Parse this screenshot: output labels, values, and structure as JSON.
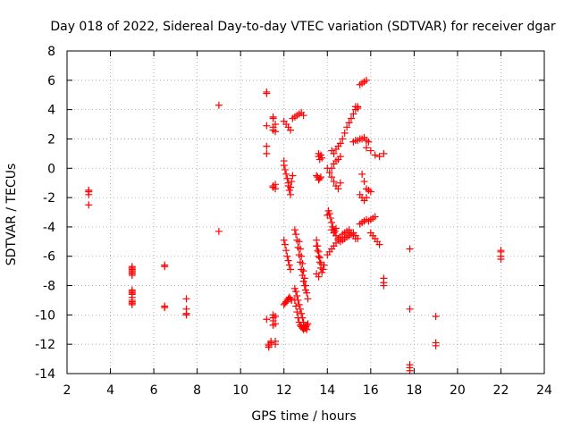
{
  "chart_data": {
    "type": "scatter",
    "title": "Day 018 of 2022, Sidereal Day-to-day VTEC variation (SDTVAR) for receiver dgar",
    "xlabel": "GPS time / hours",
    "ylabel": "SDTVAR / TECUs",
    "xlim": [
      2,
      24
    ],
    "ylim": [
      -14,
      8
    ],
    "xticks": [
      2,
      4,
      6,
      8,
      10,
      12,
      14,
      16,
      18,
      20,
      22,
      24
    ],
    "yticks": [
      -14,
      -12,
      -10,
      -8,
      -6,
      -4,
      -2,
      0,
      2,
      4,
      6,
      8
    ],
    "grid": true,
    "marker": "+",
    "marker_color": "#ff0000",
    "series": [
      {
        "name": "SDTVAR",
        "x": [
          3.0,
          3.0,
          3.0,
          3.0,
          5.0,
          5.0,
          5.0,
          5.0,
          5.0,
          5.0,
          5.0,
          5.0,
          5.0,
          5.0,
          5.0,
          5.0,
          5.0,
          5.0,
          5.0,
          5.0,
          6.5,
          6.5,
          6.5,
          6.5,
          7.5,
          7.5,
          7.5,
          7.5,
          9.0,
          9.0,
          11.2,
          11.2,
          11.2,
          11.2,
          11.2,
          11.2,
          11.3,
          11.3,
          11.3,
          11.4,
          11.4,
          11.5,
          11.5,
          11.5,
          11.5,
          11.5,
          11.5,
          11.5,
          11.5,
          11.5,
          11.5,
          11.6,
          11.6,
          11.6,
          11.6,
          11.6,
          11.6,
          11.6,
          11.6,
          12.0,
          12.0,
          12.05,
          12.1,
          12.15,
          12.2,
          12.2,
          12.25,
          12.3,
          12.3,
          12.35,
          12.4,
          12.0,
          12.05,
          12.1,
          12.15,
          12.2,
          12.25,
          12.3,
          12.0,
          12.05,
          12.1,
          12.15,
          12.2,
          12.25,
          12.3,
          12.35,
          12.0,
          12.1,
          12.2,
          12.3,
          12.4,
          12.5,
          12.6,
          12.7,
          12.8,
          12.9,
          12.5,
          12.55,
          12.6,
          12.65,
          12.7,
          12.75,
          12.8,
          12.85,
          12.9,
          12.95,
          13.0,
          12.5,
          12.55,
          12.6,
          12.65,
          12.7,
          12.75,
          12.8,
          12.85,
          12.9,
          12.95,
          13.0,
          13.05,
          12.5,
          12.55,
          12.6,
          12.65,
          12.7,
          12.75,
          12.8,
          12.85,
          12.9,
          12.95,
          13.0,
          13.05,
          13.1,
          12.7,
          12.75,
          12.8,
          12.85,
          12.9,
          12.95,
          13.0,
          13.05,
          13.1,
          13.6,
          13.6,
          13.65,
          13.7,
          13.75,
          13.5,
          13.55,
          13.6,
          13.65,
          13.7,
          13.5,
          13.55,
          13.6,
          13.65,
          13.7,
          13.75,
          13.8,
          13.85,
          13.5,
          13.55,
          13.6,
          13.65,
          13.7,
          13.5,
          13.6,
          14.0,
          14.05,
          14.1,
          14.15,
          14.2,
          14.25,
          14.3,
          14.35,
          14.4,
          14.0,
          14.1,
          14.2,
          14.3,
          14.4,
          14.5,
          14.6,
          14.2,
          14.3,
          14.4,
          14.5,
          14.6,
          14.7,
          14.8,
          14.9,
          15.0,
          15.1,
          15.2,
          15.3,
          15.4,
          14.2,
          14.3,
          14.4,
          14.5,
          14.6,
          14.7,
          14.8,
          14.9,
          15.0,
          15.1,
          15.2,
          15.3,
          15.4,
          14.2,
          14.3,
          14.4,
          14.5,
          14.6,
          14.0,
          14.1,
          14.2,
          14.3,
          14.4,
          14.5,
          14.6,
          14.7,
          14.8,
          14.9,
          15.0,
          15.1,
          15.2,
          15.3,
          15.3,
          15.4,
          15.5,
          15.6,
          15.7,
          15.8,
          15.2,
          15.3,
          15.4,
          15.5,
          15.6,
          15.7,
          15.8,
          15.9,
          15.6,
          15.7,
          15.8,
          15.9,
          16.0,
          15.5,
          15.6,
          15.7,
          15.8,
          15.9,
          16.0,
          16.1,
          16.2,
          15.5,
          15.6,
          15.7,
          15.8,
          15.8,
          16.0,
          16.2,
          16.4,
          16.6,
          16.0,
          16.1,
          16.2,
          16.3,
          16.4,
          16.6,
          16.6,
          16.6,
          17.8,
          17.8,
          17.8,
          17.8,
          17.8,
          19.0,
          19.0,
          19.0,
          22.0,
          22.0,
          22.0,
          22.0
        ],
        "y": [
          -1.6,
          -1.8,
          -1.5,
          -2.5,
          -6.9,
          -7.1,
          -7.0,
          -7.3,
          -6.8,
          -8.4,
          -8.6,
          -8.5,
          -8.8,
          -9.0,
          -9.2,
          -9.3,
          -9.1,
          -8.3,
          -7.2,
          -6.7,
          -6.6,
          -6.7,
          -9.4,
          -9.5,
          -8.9,
          -9.6,
          -9.9,
          -10.0,
          4.3,
          -4.3,
          5.2,
          5.1,
          1.0,
          1.5,
          2.9,
          -10.3,
          -12.2,
          -12.1,
          -12.0,
          -11.9,
          -11.8,
          3.5,
          3.4,
          2.8,
          2.6,
          -1.2,
          -1.3,
          -10.0,
          -10.2,
          -10.4,
          -10.7,
          2.5,
          3.0,
          -1.1,
          -1.4,
          -12.0,
          -11.8,
          -10.6,
          -10.1,
          0.5,
          0.2,
          -0.1,
          -0.4,
          -0.7,
          -1.0,
          -1.2,
          -1.5,
          -1.8,
          -1.3,
          -0.9,
          -0.5,
          -4.9,
          -5.2,
          -5.6,
          -6.0,
          -6.3,
          -6.6,
          -6.9,
          -9.3,
          -9.2,
          -9.1,
          -9.0,
          -8.9,
          -8.8,
          -8.9,
          -9.0,
          3.2,
          3.0,
          2.8,
          2.6,
          3.4,
          3.5,
          3.6,
          3.7,
          3.8,
          3.6,
          -4.2,
          -4.5,
          -4.9,
          -5.4,
          -5.9,
          -6.4,
          -6.9,
          -7.3,
          -7.7,
          -8.0,
          -8.3,
          -8.2,
          -8.4,
          -8.7,
          -9.0,
          -9.3,
          -9.6,
          -9.9,
          -10.2,
          -10.5,
          -10.8,
          -10.9,
          -11.0,
          -9.0,
          -9.4,
          -9.8,
          -10.2,
          -10.5,
          -10.7,
          -10.8,
          -10.9,
          -11.0,
          -10.9,
          -10.8,
          -10.7,
          -10.6,
          -5.0,
          -5.5,
          -6.0,
          -6.5,
          -7.0,
          -7.5,
          -8.0,
          -8.5,
          -8.9,
          1.0,
          0.8,
          0.6,
          0.9,
          0.7,
          -0.5,
          -0.6,
          -0.8,
          -0.7,
          -0.6,
          -5.3,
          -5.6,
          -6.0,
          -6.4,
          -6.8,
          -7.1,
          -6.9,
          -6.6,
          -4.9,
          -5.3,
          -5.7,
          -6.1,
          -6.5,
          -7.2,
          -7.4,
          -3.2,
          -2.9,
          -3.1,
          -3.4,
          -3.7,
          -4.0,
          -4.2,
          -4.3,
          -4.1,
          0.0,
          -0.3,
          -0.6,
          -0.9,
          -1.2,
          -1.4,
          -1.0,
          1.2,
          1.0,
          1.3,
          1.5,
          1.7,
          2.0,
          2.4,
          2.8,
          3.1,
          3.4,
          3.7,
          4.0,
          4.2,
          -4.2,
          -4.4,
          -4.6,
          -4.8,
          -5.0,
          -4.9,
          -4.8,
          -4.7,
          -4.6,
          -4.5,
          -4.4,
          -4.6,
          -4.8,
          0.0,
          0.3,
          0.5,
          0.6,
          0.8,
          -5.9,
          -5.7,
          -5.5,
          -5.3,
          -5.1,
          -4.9,
          -4.7,
          -4.5,
          -4.4,
          -4.3,
          -4.2,
          -4.4,
          -4.6,
          -4.8,
          4.2,
          4.1,
          5.7,
          5.8,
          5.9,
          6.0,
          1.8,
          1.9,
          1.9,
          2.0,
          2.0,
          2.1,
          1.9,
          1.8,
          -0.4,
          -0.9,
          -1.4,
          -1.5,
          -1.6,
          -1.8,
          -2.0,
          -2.2,
          -2.0,
          -3.6,
          -3.5,
          -3.4,
          -3.3,
          -3.8,
          -3.7,
          -3.6,
          -3.5,
          1.4,
          1.2,
          0.9,
          0.8,
          1.0,
          -4.4,
          -4.6,
          -4.8,
          -5.0,
          -5.2,
          -7.5,
          -7.8,
          -8.0,
          -5.5,
          -9.6,
          -13.4,
          -13.6,
          -13.8,
          -10.1,
          -11.9,
          -12.1,
          -5.6,
          -5.7,
          -6.0,
          -6.2
        ]
      }
    ]
  }
}
